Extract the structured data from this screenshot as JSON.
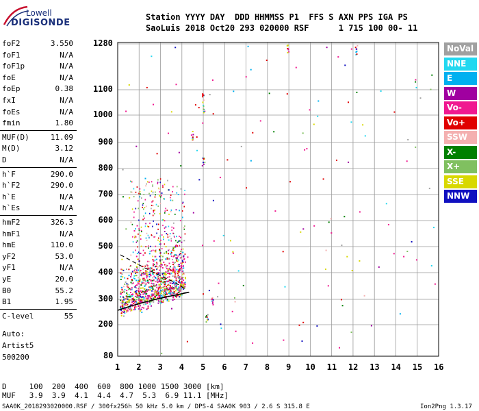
{
  "logo": {
    "line1": "Lowell",
    "line2": "DIGISONDE"
  },
  "header": {
    "row1": "Station YYYY DAY  DDD HHMMSS P1  FFS S AXN PPS IGA PS",
    "row2": "SaoLuis 2018 Oct20 293 020000 RSF      1 715 100 00- 11"
  },
  "params": [
    {
      "name": "foF2",
      "value": "3.550"
    },
    {
      "name": "foF1",
      "value": "N/A"
    },
    {
      "name": "foF1p",
      "value": "N/A"
    },
    {
      "name": "foE",
      "value": "N/A"
    },
    {
      "name": "foEp",
      "value": "0.38"
    },
    {
      "name": "fxI",
      "value": "N/A"
    },
    {
      "name": "foEs",
      "value": "N/A"
    },
    {
      "name": "fmin",
      "value": "1.80"
    },
    {
      "name": "MUF(D)",
      "value": "11.09"
    },
    {
      "name": "M(D)",
      "value": "3.12"
    },
    {
      "name": "D",
      "value": "N/A"
    },
    {
      "name": "h`F",
      "value": "290.0"
    },
    {
      "name": "h`F2",
      "value": "290.0"
    },
    {
      "name": "h`E",
      "value": "N/A"
    },
    {
      "name": "h`Es",
      "value": "N/A"
    },
    {
      "name": "hmF2",
      "value": "326.3"
    },
    {
      "name": "hmF1",
      "value": "N/A"
    },
    {
      "name": "hmE",
      "value": "110.0"
    },
    {
      "name": "yF2",
      "value": "53.0"
    },
    {
      "name": "yF1",
      "value": "N/A"
    },
    {
      "name": "yE",
      "value": "20.0"
    },
    {
      "name": "B0",
      "value": "55.2"
    },
    {
      "name": "B1",
      "value": "1.95"
    },
    {
      "name": "C-level",
      "value": "55"
    }
  ],
  "auto": {
    "line1": "Auto:",
    "line2": "Artist5",
    "line3": "500200"
  },
  "legend": [
    {
      "label": "NoVal",
      "color": "#a0a0a0"
    },
    {
      "label": "NNE",
      "color": "#22d8f0"
    },
    {
      "label": "E",
      "color": "#00b0f0"
    },
    {
      "label": "W",
      "color": "#a000a0"
    },
    {
      "label": "Vo-",
      "color": "#f01890"
    },
    {
      "label": "Vo+",
      "color": "#e00000"
    },
    {
      "label": "SSW",
      "color": "#f4b0b0"
    },
    {
      "label": "X-",
      "color": "#008000"
    },
    {
      "label": "X+",
      "color": "#80c060"
    },
    {
      "label": "SSE",
      "color": "#d8d800"
    },
    {
      "label": "NNW",
      "color": "#1010c0"
    }
  ],
  "plot": {
    "x_ticks": [
      "1",
      "2",
      "3",
      "4",
      "5",
      "6",
      "7",
      "8",
      "9",
      "10",
      "11",
      "12",
      "13",
      "14",
      "15",
      "16"
    ],
    "y_ticks": [
      "80",
      "200",
      "300",
      "400",
      "500",
      "600",
      "700",
      "800",
      "900",
      "1000",
      "1100",
      "1280"
    ]
  },
  "footer": {
    "d_row": "D     100  200  400  600  800 1000 1500 3000 [km]",
    "muf_row": "MUF   3.9  3.9  4.1  4.4  4.7  5.3  6.9 11.1 [MHz]",
    "file_info": "SAA0K_2018293020000.RSF / 300fx256h 50 kHz 5.0 km / DPS-4 SAA0K 903 / 2.6 S 315.8 E",
    "version": "Ion2Png 1.3.17"
  }
}
